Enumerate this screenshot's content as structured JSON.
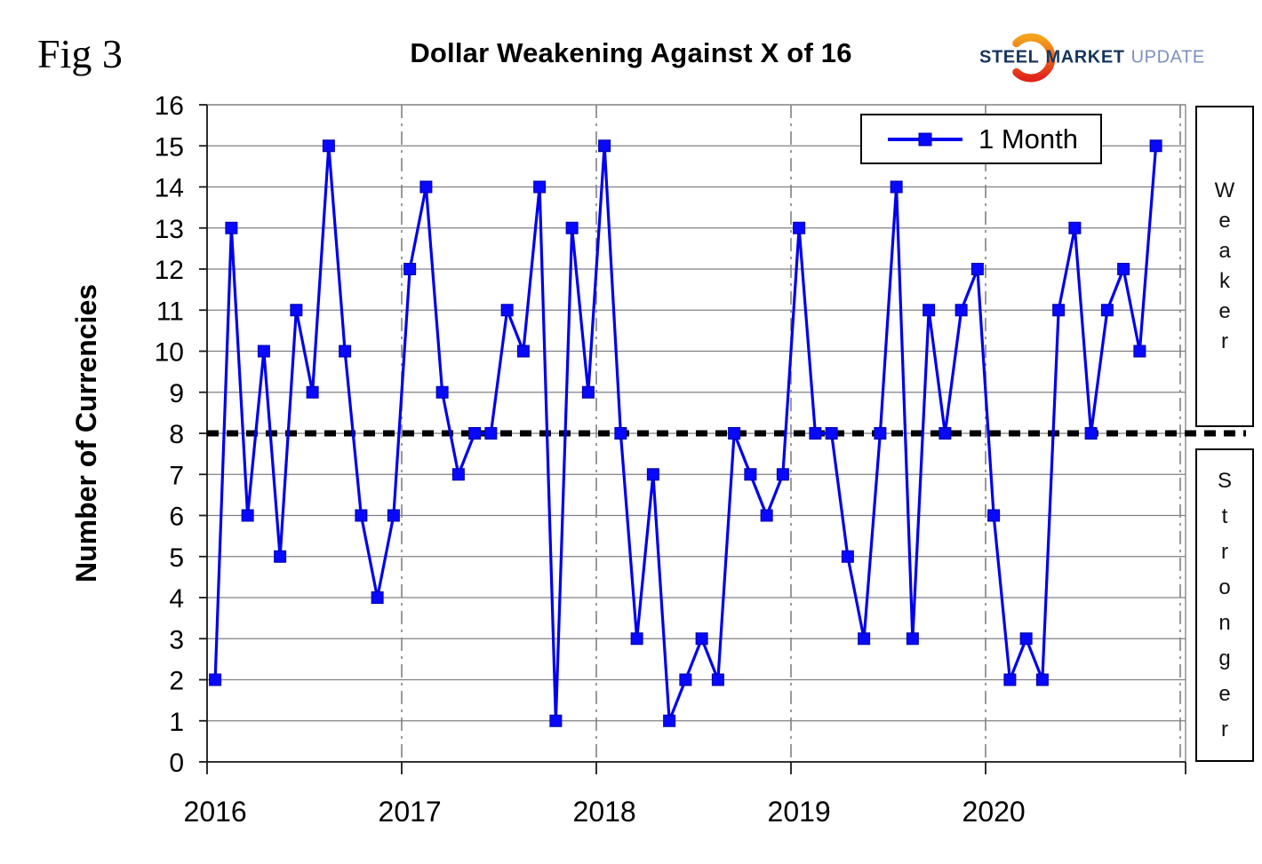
{
  "figure_label": "Fig 3",
  "title": "Dollar Weakening Against X of 16",
  "logo": {
    "word1": "STEEL",
    "word2": "MARKET",
    "word3": "UPDATE"
  },
  "legend": {
    "label": "1 Month"
  },
  "annotations": {
    "upper": "Weaker",
    "lower": "Stronger"
  },
  "colors": {
    "series_blue": "#0000EE",
    "marker_blue": "#0808FF",
    "grid_gray": "#808080",
    "axis_black": "#1a1a1a",
    "reference_black": "#000000",
    "logo_navy": "#17365D",
    "logo_light_blue": "#7A90BE",
    "logo_orange_top": "#F6A21B",
    "logo_red_bottom": "#E1251B"
  },
  "chart_data": {
    "type": "line",
    "title": "Dollar Weakening Against X of 16",
    "xlabel": "",
    "ylabel": "Number of Currencies",
    "ylim": [
      0,
      16
    ],
    "y_ticks": [
      0,
      1,
      2,
      3,
      4,
      5,
      6,
      7,
      8,
      9,
      10,
      11,
      12,
      13,
      14,
      15,
      16
    ],
    "x_year_labels": [
      "2016",
      "2017",
      "2018",
      "2019",
      "2020"
    ],
    "months_per_year": 12,
    "start_month": "2016-01",
    "end_month": "2020-11",
    "grid": "horizontal gray solid; vertical gray dash-dot at year boundaries",
    "legend_position": "top-right-inside",
    "reference_line": {
      "y": 8,
      "style": "dotted",
      "color": "#000000"
    },
    "series": [
      {
        "name": "1 Month",
        "marker": "square",
        "color": "#0000EE",
        "values": [
          2,
          13,
          6,
          10,
          5,
          11,
          9,
          15,
          10,
          6,
          4,
          6,
          12,
          14,
          9,
          7,
          8,
          8,
          11,
          10,
          14,
          1,
          13,
          9,
          15,
          8,
          3,
          7,
          1,
          2,
          3,
          2,
          8,
          7,
          6,
          7,
          13,
          8,
          8,
          5,
          3,
          8,
          14,
          3,
          11,
          8,
          11,
          12,
          6,
          2,
          3,
          2,
          11,
          13,
          8,
          11,
          12,
          10,
          15
        ]
      }
    ]
  }
}
